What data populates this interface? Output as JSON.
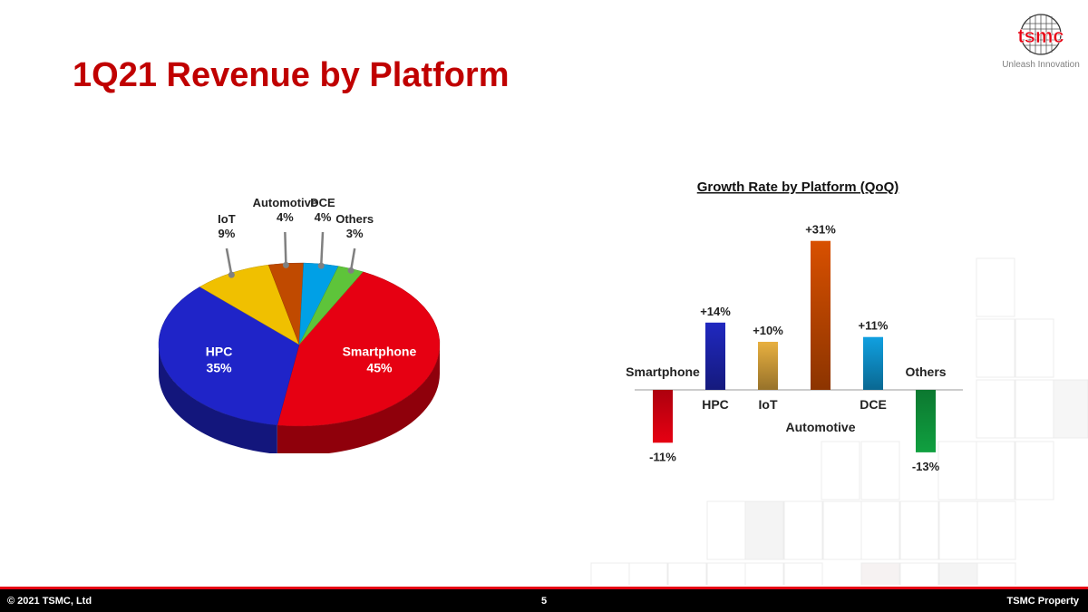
{
  "slide": {
    "title": "1Q21 Revenue by Platform",
    "logo_text": "tsmc",
    "tagline": "Unleash Innovation",
    "footer_left": "© 2021 TSMC, Ltd",
    "page_number": "5",
    "footer_right": "TSMC Property"
  },
  "colors": {
    "title": "#c00000",
    "accent": "#e60012",
    "smartphone": "#e60012",
    "hpc": "#1f24c8",
    "iot": "#f0b400",
    "automotive": "#c04a00",
    "dce": "#00a0e6",
    "others": "#3cb44b"
  },
  "chart_data": [
    {
      "type": "pie",
      "title": "",
      "slices": [
        {
          "label": "Smartphone",
          "value": 45,
          "display": "45%",
          "color": "#e60012"
        },
        {
          "label": "HPC",
          "value": 35,
          "display": "35%",
          "color": "#1f24c8"
        },
        {
          "label": "IoT",
          "value": 9,
          "display": "9%",
          "color": "#f0c000"
        },
        {
          "label": "Automotive",
          "value": 4,
          "display": "4%",
          "color": "#c04a00"
        },
        {
          "label": "DCE",
          "value": 4,
          "display": "4%",
          "color": "#00a0e6"
        },
        {
          "label": "Others",
          "value": 3,
          "display": "3%",
          "color": "#5ec43a"
        }
      ]
    },
    {
      "type": "bar",
      "title": "Growth Rate by Platform (QoQ)",
      "categories": [
        "Smartphone",
        "HPC",
        "IoT",
        "Automotive",
        "DCE",
        "Others"
      ],
      "values": [
        -11,
        14,
        10,
        31,
        11,
        -13
      ],
      "value_labels": [
        "-11%",
        "+14%",
        "+10%",
        "+31%",
        "+11%",
        "-13%"
      ],
      "colors": [
        "#e60012",
        "#2028c0",
        "#e8b040",
        "#d85000",
        "#10a0e0",
        "#10a040"
      ],
      "ylim": [
        -13,
        31
      ],
      "grid": false,
      "legend": false
    }
  ]
}
